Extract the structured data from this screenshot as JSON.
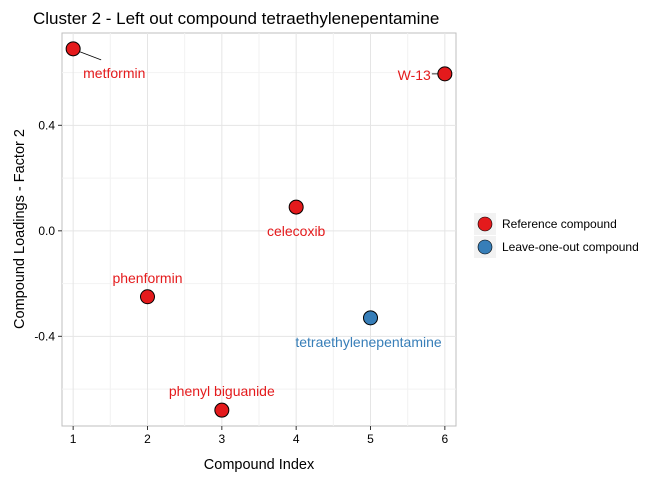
{
  "chart_data": {
    "type": "scatter",
    "title": "Cluster 2 - Left out compound tetraethylenepentamine",
    "xlabel": "Compound Index",
    "ylabel": "Compound Loadings - Factor 2",
    "xlim": [
      0.85,
      6.15
    ],
    "ylim": [
      -0.74,
      0.75
    ],
    "xticks": [
      1,
      2,
      3,
      4,
      5,
      6
    ],
    "yticks": [
      -0.4,
      0.0,
      0.4
    ],
    "ytick_labels": [
      "-0.4",
      "0.0",
      "0.4"
    ],
    "grid": true,
    "legend_position": "right",
    "series": [
      {
        "name": "Reference compound",
        "color": "#e41a1c"
      },
      {
        "name": "Leave-one-out compound",
        "color": "#377eb8"
      }
    ],
    "points": [
      {
        "label": "metformin",
        "x": 1,
        "y": 0.69,
        "series": "Reference compound"
      },
      {
        "label": "phenformin",
        "x": 2,
        "y": -0.25,
        "series": "Reference compound"
      },
      {
        "label": "phenyl biguanide",
        "x": 3,
        "y": -0.68,
        "series": "Reference compound"
      },
      {
        "label": "celecoxib",
        "x": 4,
        "y": 0.09,
        "series": "Reference compound"
      },
      {
        "label": "tetraethylenepentamine",
        "x": 5,
        "y": -0.33,
        "series": "Leave-one-out compound"
      },
      {
        "label": "W-13",
        "x": 6,
        "y": 0.595,
        "series": "Reference compound"
      }
    ]
  }
}
